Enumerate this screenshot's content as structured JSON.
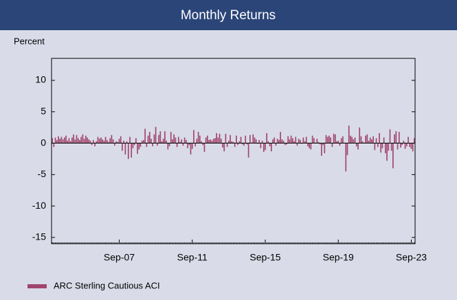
{
  "chart_data": {
    "type": "bar",
    "title": "Monthly Returns",
    "y_label": "Percent",
    "series": [
      {
        "name": "ARC Sterling Cautious ACI",
        "color": "#a0456e",
        "values": [
          0.8,
          -0.6,
          0.9,
          0.5,
          1.1,
          0.7,
          1.0,
          0.6,
          0.9,
          1.2,
          0.4,
          0.8,
          0.3,
          0.9,
          1.4,
          0.6,
          1.3,
          0.8,
          0.5,
          1.0,
          1.4,
          0.7,
          1.2,
          0.9,
          0.6,
          0.4,
          -0.3,
          0.5,
          -0.5,
          0.3,
          1.0,
          0.7,
          0.9,
          0.6,
          0.4,
          1.0,
          0.5,
          0.2,
          0.8,
          1.3,
          0.6,
          -0.4,
          0.3,
          0.2,
          0.7,
          1.1,
          -1.2,
          0.4,
          -1.8,
          0.3,
          -2.5,
          1.0,
          -2.3,
          -0.8,
          -0.3,
          0.8,
          -1.7,
          -1.0,
          -0.6,
          0.4,
          0.5,
          2.3,
          -0.6,
          1.2,
          1.8,
          0.7,
          -0.5,
          1.4,
          2.6,
          -0.4,
          1.3,
          1.9,
          0.3,
          0.7,
          1.9,
          0.4,
          -1.0,
          -0.5,
          1.8,
          0.6,
          1.4,
          0.9,
          -0.6,
          1.0,
          0.2,
          0.6,
          -0.4,
          0.9,
          0.5,
          -0.8,
          -0.3,
          -1.8,
          -0.9,
          2.1,
          -0.5,
          0.7,
          1.8,
          1.2,
          0.3,
          -0.3,
          -1.4,
          0.9,
          1.2,
          0.5,
          0.6,
          0.4,
          0.7,
          0.8,
          1.6,
          0.9,
          1.5,
          0.7,
          -0.7,
          -1.3,
          1.5,
          -0.6,
          0.4,
          1.3,
          0.3,
          0.2,
          -0.6,
          1.2,
          -0.3,
          0.3,
          1.0,
          -0.2,
          -0.4,
          1.2,
          -0.2,
          -2.3,
          1.3,
          0.1,
          1.4,
          0.9,
          0.6,
          -0.1,
          0.5,
          -0.8,
          0.4,
          -1.4,
          -1.1,
          1.6,
          0.3,
          -0.5,
          -1.3,
          0.6,
          0.9,
          -0.4,
          0.7,
          0.5,
          1.8,
          0.6,
          0.4,
          -0.3,
          -0.2,
          1.1,
          0.6,
          1.2,
          0.8,
          0.3,
          1.0,
          -0.4,
          0.7,
          0.5,
          -0.1,
          0.9,
          0.3,
          1.0,
          -0.5,
          -0.8,
          -1.0,
          1.2,
          0.8,
          0.1,
          0.7,
          0.2,
          -0.2,
          -2.0,
          -0.3,
          -1.6,
          1.3,
          1.0,
          1.2,
          0.9,
          -0.6,
          1.5,
          1.4,
          0.3,
          0.4,
          -0.4,
          0.8,
          1.1,
          0.1,
          -4.5,
          -1.9,
          2.8,
          1.2,
          1.0,
          0.6,
          0.9,
          -0.5,
          -1.0,
          2.5,
          1.1,
          0.3,
          0.1,
          1.2,
          1.4,
          0.4,
          0.9,
          0.6,
          1.1,
          -1.1,
          0.8,
          -0.6,
          1.6,
          -1.5,
          -0.8,
          0.9,
          -1.6,
          -2.8,
          -1.2,
          2.2,
          -1.2,
          -4.0,
          1.4,
          1.9,
          -1.0,
          1.8,
          -0.7,
          -0.3,
          0.4,
          -0.9,
          -0.5,
          1.0,
          -0.6,
          -0.9,
          -1.3,
          0.8
        ]
      }
    ],
    "categories": [
      null,
      null,
      null,
      null,
      null,
      null,
      null,
      null,
      null,
      null,
      null,
      null,
      null,
      null,
      null,
      null,
      null,
      null,
      null,
      null,
      null,
      null,
      null,
      null,
      null,
      null,
      null,
      null,
      null,
      null,
      null,
      null,
      null,
      null,
      null,
      null,
      null,
      null,
      null,
      null,
      null,
      null,
      null,
      null,
      "Sep-07",
      null,
      null,
      null,
      null,
      null,
      null,
      null,
      null,
      null,
      null,
      null,
      null,
      null,
      null,
      null,
      null,
      null,
      null,
      null,
      null,
      null,
      null,
      null,
      null,
      null,
      null,
      null,
      null,
      null,
      null,
      null,
      null,
      null,
      null,
      null,
      null,
      null,
      null,
      null,
      null,
      null,
      null,
      null,
      null,
      null,
      null,
      null,
      "Sep-11",
      null,
      null,
      null,
      null,
      null,
      null,
      null,
      null,
      null,
      null,
      null,
      null,
      null,
      null,
      null,
      null,
      null,
      null,
      null,
      null,
      null,
      null,
      null,
      null,
      null,
      null,
      null,
      null,
      null,
      null,
      null,
      null,
      null,
      null,
      null,
      null,
      null,
      null,
      null,
      null,
      null,
      null,
      null,
      null,
      null,
      null,
      null,
      "Sep-15",
      null,
      null,
      null,
      null,
      null,
      null,
      null,
      null,
      null,
      null,
      null,
      null,
      null,
      null,
      null,
      null,
      null,
      null,
      null,
      null,
      null,
      null,
      null,
      null,
      null,
      null,
      null,
      null,
      null,
      null,
      null,
      null,
      null,
      null,
      null,
      null,
      null,
      null,
      null,
      null,
      null,
      null,
      null,
      null,
      null,
      null,
      null,
      "Sep-19",
      null,
      null,
      null,
      null,
      null,
      null,
      null,
      null,
      null,
      null,
      null,
      null,
      null,
      null,
      null,
      null,
      null,
      null,
      null,
      null,
      null,
      null,
      null,
      null,
      null,
      null,
      null,
      null,
      null,
      null,
      null,
      null,
      null,
      null,
      null,
      null,
      null,
      null,
      null,
      null,
      null,
      null,
      null,
      null,
      null,
      null,
      null,
      "Sep-23",
      null,
      null
    ],
    "ylim": [
      -16,
      13.5
    ],
    "yticks": [
      -15,
      -10,
      -5,
      0,
      5,
      10
    ],
    "grid": false,
    "legend": "bottom-left"
  }
}
